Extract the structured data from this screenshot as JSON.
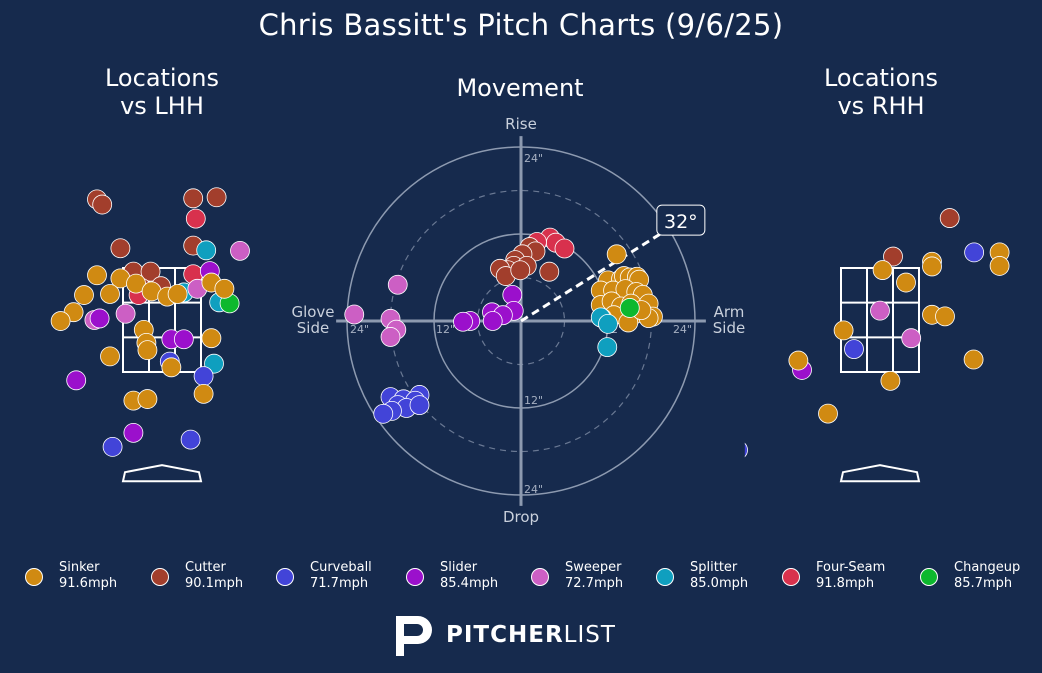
{
  "title": "Chris Bassitt's Pitch Charts (9/6/25)",
  "panels": {
    "lhh_title": "Locations\nvs LHH",
    "rhh_title": "Locations\nvs RHH",
    "movement_title": "Movement"
  },
  "colors": {
    "background": "#162a4d",
    "Sinker": "#d08a12",
    "Cutter": "#a23e2c",
    "Curveball": "#4244d8",
    "Slider": "#9b10cc",
    "Sweeper": "#cc5fc4",
    "Splitter": "#0f9fbf",
    "Four-Seam": "#d8314d",
    "Changeup": "#0db82e"
  },
  "legend": [
    {
      "pitch": "Sinker",
      "speed": "91.6mph"
    },
    {
      "pitch": "Cutter",
      "speed": "90.1mph"
    },
    {
      "pitch": "Curveball",
      "speed": "71.7mph"
    },
    {
      "pitch": "Slider",
      "speed": "85.4mph"
    },
    {
      "pitch": "Sweeper",
      "speed": "72.7mph"
    },
    {
      "pitch": "Splitter",
      "speed": "85.0mph"
    },
    {
      "pitch": "Four-Seam",
      "speed": "91.8mph"
    },
    {
      "pitch": "Changeup",
      "speed": "85.7mph"
    }
  ],
  "brand": {
    "bold": "PITCHER",
    "light": "LIST"
  },
  "chart_data": [
    {
      "type": "scatter",
      "title": "Locations\nvs LHH",
      "zone_grid": "3x3",
      "x_range": [
        -2.6,
        2.6
      ],
      "y_range": [
        -0.7,
        5.6
      ],
      "points": [
        {
          "pitch": "Cutter",
          "x": -1.25,
          "y": 4.82
        },
        {
          "pitch": "Cutter",
          "x": -1.15,
          "y": 4.72
        },
        {
          "pitch": "Cutter",
          "x": 0.6,
          "y": 4.84
        },
        {
          "pitch": "Cutter",
          "x": 1.05,
          "y": 4.86
        },
        {
          "pitch": "Cutter",
          "x": -0.8,
          "y": 3.88
        },
        {
          "pitch": "Cutter",
          "x": 0.6,
          "y": 3.93
        },
        {
          "pitch": "Cutter",
          "x": -0.55,
          "y": 3.43
        },
        {
          "pitch": "Cutter",
          "x": -0.22,
          "y": 3.43
        },
        {
          "pitch": "Cutter",
          "x": -0.4,
          "y": 3.12
        },
        {
          "pitch": "Cutter",
          "x": -0.02,
          "y": 3.15
        },
        {
          "pitch": "Four-Seam",
          "x": 0.65,
          "y": 4.45
        },
        {
          "pitch": "Four-Seam",
          "x": 0.6,
          "y": 3.38
        },
        {
          "pitch": "Four-Seam",
          "x": -0.45,
          "y": 2.98
        },
        {
          "pitch": "Splitter",
          "x": 0.85,
          "y": 3.84
        },
        {
          "pitch": "Splitter",
          "x": 0.42,
          "y": 3.03
        },
        {
          "pitch": "Splitter",
          "x": 1.1,
          "y": 2.84
        },
        {
          "pitch": "Splitter",
          "x": 1.0,
          "y": 1.66
        },
        {
          "pitch": "Changeup",
          "x": 1.3,
          "y": 2.82
        },
        {
          "pitch": "Sweeper",
          "x": 1.5,
          "y": 3.83
        },
        {
          "pitch": "Sweeper",
          "x": 0.68,
          "y": 3.1
        },
        {
          "pitch": "Sweeper",
          "x": -0.7,
          "y": 2.62
        },
        {
          "pitch": "Sweeper",
          "x": -1.3,
          "y": 2.5
        },
        {
          "pitch": "Slider",
          "x": 0.92,
          "y": 3.44
        },
        {
          "pitch": "Slider",
          "x": -1.2,
          "y": 2.53
        },
        {
          "pitch": "Slider",
          "x": 0.18,
          "y": 2.13
        },
        {
          "pitch": "Slider",
          "x": -1.65,
          "y": 1.34
        },
        {
          "pitch": "Slider",
          "x": -0.55,
          "y": 0.33
        },
        {
          "pitch": "Slider",
          "x": 0.42,
          "y": 2.13
        },
        {
          "pitch": "Curveball",
          "x": 0.15,
          "y": 1.7
        },
        {
          "pitch": "Curveball",
          "x": 0.8,
          "y": 1.42
        },
        {
          "pitch": "Curveball",
          "x": -0.95,
          "y": 0.06
        },
        {
          "pitch": "Curveball",
          "x": 0.55,
          "y": 0.2
        },
        {
          "pitch": "Sinker",
          "x": -0.8,
          "y": 3.3
        },
        {
          "pitch": "Sinker",
          "x": -1.0,
          "y": 3.0
        },
        {
          "pitch": "Sinker",
          "x": -1.25,
          "y": 3.36
        },
        {
          "pitch": "Sinker",
          "x": -0.5,
          "y": 3.2
        },
        {
          "pitch": "Sinker",
          "x": -0.2,
          "y": 3.05
        },
        {
          "pitch": "Sinker",
          "x": 0.1,
          "y": 2.95
        },
        {
          "pitch": "Sinker",
          "x": 0.3,
          "y": 3.0
        },
        {
          "pitch": "Sinker",
          "x": 0.95,
          "y": 3.22
        },
        {
          "pitch": "Sinker",
          "x": 1.2,
          "y": 3.1
        },
        {
          "pitch": "Sinker",
          "x": -1.5,
          "y": 2.98
        },
        {
          "pitch": "Sinker",
          "x": -1.7,
          "y": 2.65
        },
        {
          "pitch": "Sinker",
          "x": -1.95,
          "y": 2.48
        },
        {
          "pitch": "Sinker",
          "x": -0.35,
          "y": 2.31
        },
        {
          "pitch": "Sinker",
          "x": -0.3,
          "y": 2.06
        },
        {
          "pitch": "Sinker",
          "x": -0.28,
          "y": 1.92
        },
        {
          "pitch": "Sinker",
          "x": 0.95,
          "y": 2.15
        },
        {
          "pitch": "Sinker",
          "x": -1.0,
          "y": 1.8
        },
        {
          "pitch": "Sinker",
          "x": 0.18,
          "y": 1.59
        },
        {
          "pitch": "Sinker",
          "x": -0.55,
          "y": 0.95
        },
        {
          "pitch": "Sinker",
          "x": -0.28,
          "y": 0.98
        },
        {
          "pitch": "Sinker",
          "x": 0.8,
          "y": 1.08
        }
      ]
    },
    {
      "type": "scatter",
      "title": "Movement",
      "units": "inches",
      "x_range": [
        -24,
        24
      ],
      "y_range": [
        -24,
        24
      ],
      "rings": [
        "12\"",
        "24\""
      ],
      "axis_labels": {
        "top": "Rise",
        "bottom": "Drop",
        "left": "Glove\nSide",
        "right": "Arm\nSide"
      },
      "arm_angle": "32°",
      "points": [
        {
          "pitch": "Four-Seam",
          "x": 4.0,
          "y": 11.5
        },
        {
          "pitch": "Four-Seam",
          "x": 4.8,
          "y": 10.8
        },
        {
          "pitch": "Four-Seam",
          "x": 6.0,
          "y": 10.0
        },
        {
          "pitch": "Four-Seam",
          "x": 2.2,
          "y": 10.9
        },
        {
          "pitch": "Cutter",
          "x": 1.2,
          "y": 10.2
        },
        {
          "pitch": "Cutter",
          "x": 2.0,
          "y": 9.6
        },
        {
          "pitch": "Cutter",
          "x": 0.2,
          "y": 9.2
        },
        {
          "pitch": "Cutter",
          "x": -0.8,
          "y": 8.4
        },
        {
          "pitch": "Cutter",
          "x": -1.0,
          "y": 7.6
        },
        {
          "pitch": "Cutter",
          "x": 0.8,
          "y": 7.6
        },
        {
          "pitch": "Cutter",
          "x": -1.8,
          "y": 7.0
        },
        {
          "pitch": "Cutter",
          "x": -2.9,
          "y": 7.2
        },
        {
          "pitch": "Cutter",
          "x": -2.1,
          "y": 6.2
        },
        {
          "pitch": "Cutter",
          "x": -0.1,
          "y": 7.0
        },
        {
          "pitch": "Cutter",
          "x": 3.9,
          "y": 6.8
        },
        {
          "pitch": "Sinker",
          "x": 13.2,
          "y": 9.2
        },
        {
          "pitch": "Sinker",
          "x": 12.0,
          "y": 5.6
        },
        {
          "pitch": "Sinker",
          "x": 13.8,
          "y": 5.8
        },
        {
          "pitch": "Sinker",
          "x": 14.2,
          "y": 6.2
        },
        {
          "pitch": "Sinker",
          "x": 15.0,
          "y": 6.0
        },
        {
          "pitch": "Sinker",
          "x": 16.0,
          "y": 6.1
        },
        {
          "pitch": "Sinker",
          "x": 16.3,
          "y": 5.7
        },
        {
          "pitch": "Sinker",
          "x": 11.0,
          "y": 4.2
        },
        {
          "pitch": "Sinker",
          "x": 12.7,
          "y": 4.2
        },
        {
          "pitch": "Sinker",
          "x": 14.4,
          "y": 4.4
        },
        {
          "pitch": "Sinker",
          "x": 15.9,
          "y": 4.0
        },
        {
          "pitch": "Sinker",
          "x": 16.8,
          "y": 3.6
        },
        {
          "pitch": "Sinker",
          "x": 11.0,
          "y": 2.2
        },
        {
          "pitch": "Sinker",
          "x": 12.5,
          "y": 2.7
        },
        {
          "pitch": "Sinker",
          "x": 13.8,
          "y": 2.0
        },
        {
          "pitch": "Sinker",
          "x": 15.2,
          "y": 2.4
        },
        {
          "pitch": "Sinker",
          "x": 17.6,
          "y": 2.4
        },
        {
          "pitch": "Sinker",
          "x": 12.8,
          "y": 0.8
        },
        {
          "pitch": "Sinker",
          "x": 15.6,
          "y": 0.9
        },
        {
          "pitch": "Sinker",
          "x": 18.2,
          "y": 0.6
        },
        {
          "pitch": "Sinker",
          "x": 14.8,
          "y": -0.2
        },
        {
          "pitch": "Sinker",
          "x": 17.6,
          "y": 0.4
        },
        {
          "pitch": "Sinker",
          "x": 11.2,
          "y": 0.4
        },
        {
          "pitch": "Sinker",
          "x": 16.6,
          "y": 1.5
        },
        {
          "pitch": "Changeup",
          "x": 15.0,
          "y": 1.8
        },
        {
          "pitch": "Splitter",
          "x": 11.0,
          "y": 0.5
        },
        {
          "pitch": "Splitter",
          "x": 12.0,
          "y": -0.4
        },
        {
          "pitch": "Splitter",
          "x": 11.9,
          "y": -3.6
        },
        {
          "pitch": "Slider",
          "x": -1.2,
          "y": 3.6
        },
        {
          "pitch": "Slider",
          "x": -1.0,
          "y": 1.4
        },
        {
          "pitch": "Slider",
          "x": -4.0,
          "y": 1.2
        },
        {
          "pitch": "Slider",
          "x": -2.5,
          "y": 0.8
        },
        {
          "pitch": "Slider",
          "x": -7.0,
          "y": 0.0
        },
        {
          "pitch": "Slider",
          "x": -8.0,
          "y": -0.1
        },
        {
          "pitch": "Slider",
          "x": -3.9,
          "y": 0.0
        },
        {
          "pitch": "Sweeper",
          "x": -17.0,
          "y": 5.0
        },
        {
          "pitch": "Sweeper",
          "x": -23.0,
          "y": 0.9
        },
        {
          "pitch": "Sweeper",
          "x": -18.0,
          "y": 0.3
        },
        {
          "pitch": "Sweeper",
          "x": -17.2,
          "y": -1.2
        },
        {
          "pitch": "Sweeper",
          "x": -18.0,
          "y": -2.2
        },
        {
          "pitch": "Curveball",
          "x": -18.0,
          "y": -10.5
        },
        {
          "pitch": "Curveball",
          "x": -16.2,
          "y": -10.8
        },
        {
          "pitch": "Curveball",
          "x": -14.0,
          "y": -10.2
        },
        {
          "pitch": "Curveball",
          "x": -14.6,
          "y": -11.0
        },
        {
          "pitch": "Curveball",
          "x": -17.0,
          "y": -11.6
        },
        {
          "pitch": "Curveball",
          "x": -15.8,
          "y": -12.0
        },
        {
          "pitch": "Curveball",
          "x": -17.8,
          "y": -12.4
        },
        {
          "pitch": "Curveball",
          "x": -19.0,
          "y": -12.8
        },
        {
          "pitch": "Curveball",
          "x": -14.0,
          "y": -11.6
        }
      ]
    },
    {
      "type": "scatter",
      "title": "Locations\nvs RHH",
      "zone_grid": "3x3",
      "x_range": [
        -2.6,
        2.6
      ],
      "y_range": [
        -0.7,
        5.6
      ],
      "points": [
        {
          "pitch": "Cutter",
          "x": 1.34,
          "y": 4.46
        },
        {
          "pitch": "Cutter",
          "x": 0.25,
          "y": 3.72
        },
        {
          "pitch": "Curveball",
          "x": 1.81,
          "y": 3.8
        },
        {
          "pitch": "Curveball",
          "x": -0.5,
          "y": 1.94
        },
        {
          "pitch": "Curveball",
          "x": -2.73,
          "y": 0.0
        },
        {
          "pitch": "Sweeper",
          "x": 0.0,
          "y": 2.68
        },
        {
          "pitch": "Sweeper",
          "x": 0.6,
          "y": 2.15
        },
        {
          "pitch": "Slider",
          "x": -1.5,
          "y": 1.54
        },
        {
          "pitch": "Sinker",
          "x": 2.3,
          "y": 3.8
        },
        {
          "pitch": "Sinker",
          "x": 1.0,
          "y": 3.62
        },
        {
          "pitch": "Sinker",
          "x": 2.3,
          "y": 3.54
        },
        {
          "pitch": "Sinker",
          "x": 1.0,
          "y": 3.53
        },
        {
          "pitch": "Sinker",
          "x": 0.05,
          "y": 3.46
        },
        {
          "pitch": "Sinker",
          "x": 0.5,
          "y": 3.22
        },
        {
          "pitch": "Sinker",
          "x": 1.0,
          "y": 2.6
        },
        {
          "pitch": "Sinker",
          "x": 1.25,
          "y": 2.57
        },
        {
          "pitch": "Sinker",
          "x": -0.7,
          "y": 2.3
        },
        {
          "pitch": "Sinker",
          "x": -1.57,
          "y": 1.72
        },
        {
          "pitch": "Sinker",
          "x": 1.8,
          "y": 1.74
        },
        {
          "pitch": "Sinker",
          "x": 0.2,
          "y": 1.33
        },
        {
          "pitch": "Sinker",
          "x": -1.0,
          "y": 0.7
        }
      ]
    }
  ]
}
